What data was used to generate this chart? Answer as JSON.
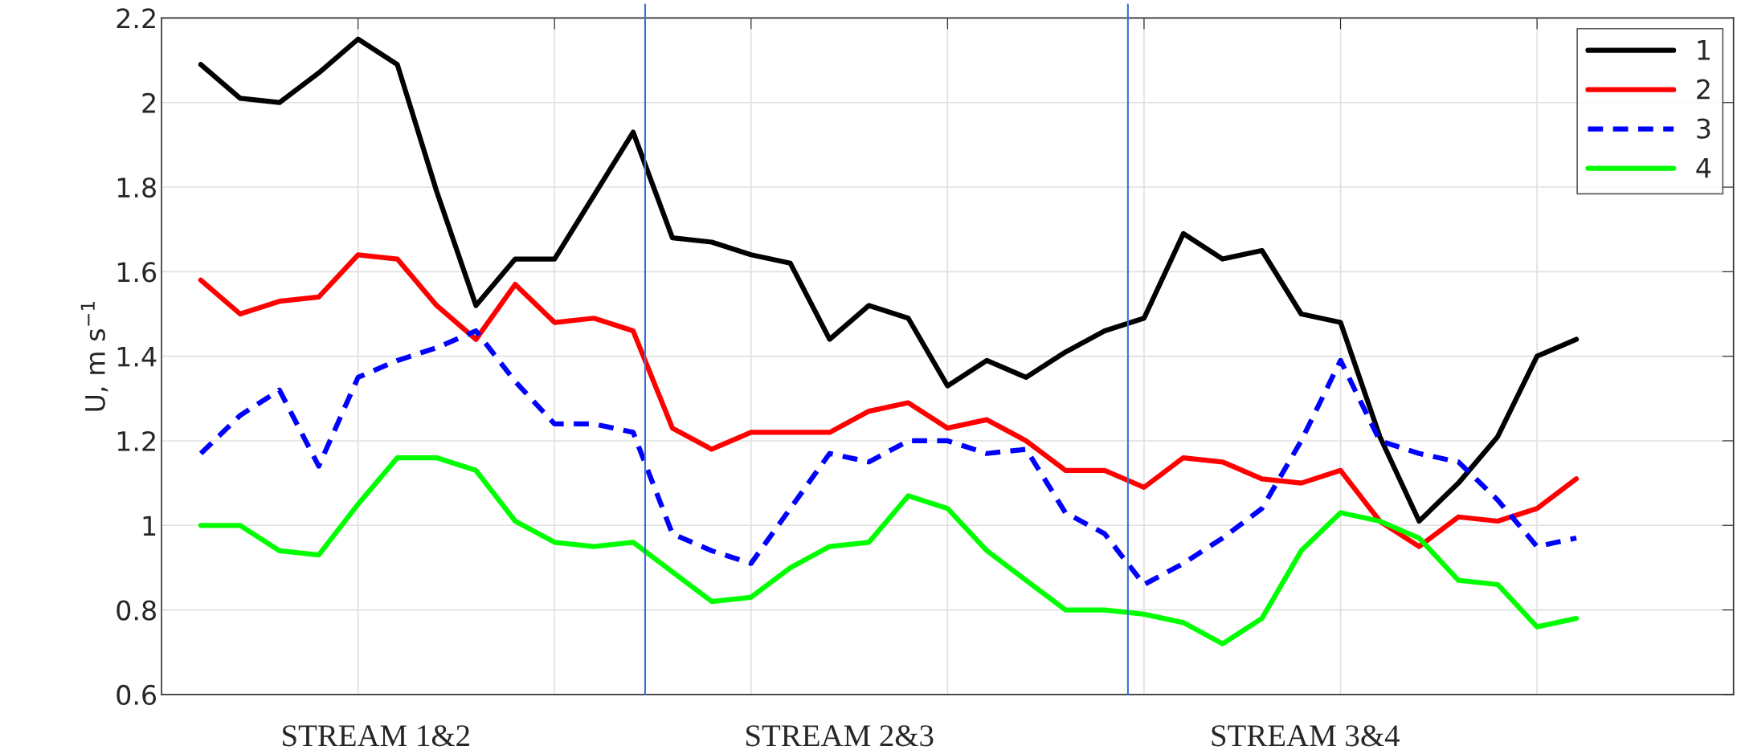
{
  "chart_data": {
    "type": "line",
    "ylabel": "U, m s$^{−1}$",
    "categories": [
      null,
      null,
      null,
      null,
      null,
      null,
      null,
      null,
      null,
      null,
      null,
      null,
      null,
      null,
      null,
      null,
      null,
      null,
      null,
      null,
      null,
      null,
      null,
      null,
      null,
      null,
      null,
      null,
      null,
      null,
      null,
      null,
      null,
      null,
      null,
      null
    ],
    "ylim": [
      0.6,
      2.2
    ],
    "yticks": [
      0.6,
      0.8,
      1,
      1.2,
      1.4,
      1.6,
      1.8,
      2,
      2.2
    ],
    "grid": true,
    "legend": "top right",
    "series": [
      {
        "name": "1",
        "color": "#000000",
        "line_style": "solid",
        "values": [
          2.09,
          2.01,
          2.0,
          2.07,
          2.15,
          2.09,
          1.79,
          1.52,
          1.63,
          1.63,
          1.78,
          1.93,
          1.68,
          1.67,
          1.64,
          1.62,
          1.44,
          1.52,
          1.49,
          1.33,
          1.39,
          1.35,
          1.41,
          1.46,
          1.49,
          1.69,
          1.63,
          1.65,
          1.5,
          1.48,
          1.21,
          1.01,
          1.1,
          1.21,
          1.4,
          1.44
        ]
      },
      {
        "name": "2",
        "color": "#ff0000",
        "line_style": "solid",
        "values": [
          1.58,
          1.5,
          1.53,
          1.54,
          1.64,
          1.63,
          1.52,
          1.44,
          1.57,
          1.48,
          1.49,
          1.46,
          1.23,
          1.18,
          1.22,
          1.22,
          1.22,
          1.27,
          1.29,
          1.23,
          1.25,
          1.2,
          1.13,
          1.13,
          1.09,
          1.16,
          1.15,
          1.11,
          1.1,
          1.13,
          1.01,
          0.95,
          1.02,
          1.01,
          1.04,
          1.11
        ]
      },
      {
        "name": "3",
        "color": "#0000ff",
        "line_style": "dashed",
        "values": [
          1.17,
          1.26,
          1.32,
          1.14,
          1.35,
          1.39,
          1.42,
          1.46,
          1.34,
          1.24,
          1.24,
          1.22,
          0.98,
          0.94,
          0.91,
          1.04,
          1.17,
          1.15,
          1.2,
          1.2,
          1.17,
          1.18,
          1.03,
          0.98,
          0.86,
          0.91,
          0.97,
          1.04,
          1.2,
          1.39,
          1.2,
          1.17,
          1.15,
          1.06,
          0.95,
          0.97
        ]
      },
      {
        "name": "4",
        "color": "#00ff00",
        "line_style": "solid",
        "values": [
          1.0,
          1.0,
          0.94,
          0.93,
          1.05,
          1.16,
          1.16,
          1.13,
          1.01,
          0.96,
          0.95,
          0.96,
          0.89,
          0.82,
          0.83,
          0.9,
          0.95,
          0.96,
          1.07,
          1.04,
          0.94,
          0.87,
          0.8,
          0.8,
          0.79,
          0.77,
          0.72,
          0.78,
          0.94,
          1.03,
          1.01,
          0.97,
          0.87,
          0.86,
          0.76,
          0.78
        ]
      }
    ],
    "annotations": [
      "STREAM 1&2",
      "STREAM 2&3",
      "STREAM 3&4"
    ]
  }
}
